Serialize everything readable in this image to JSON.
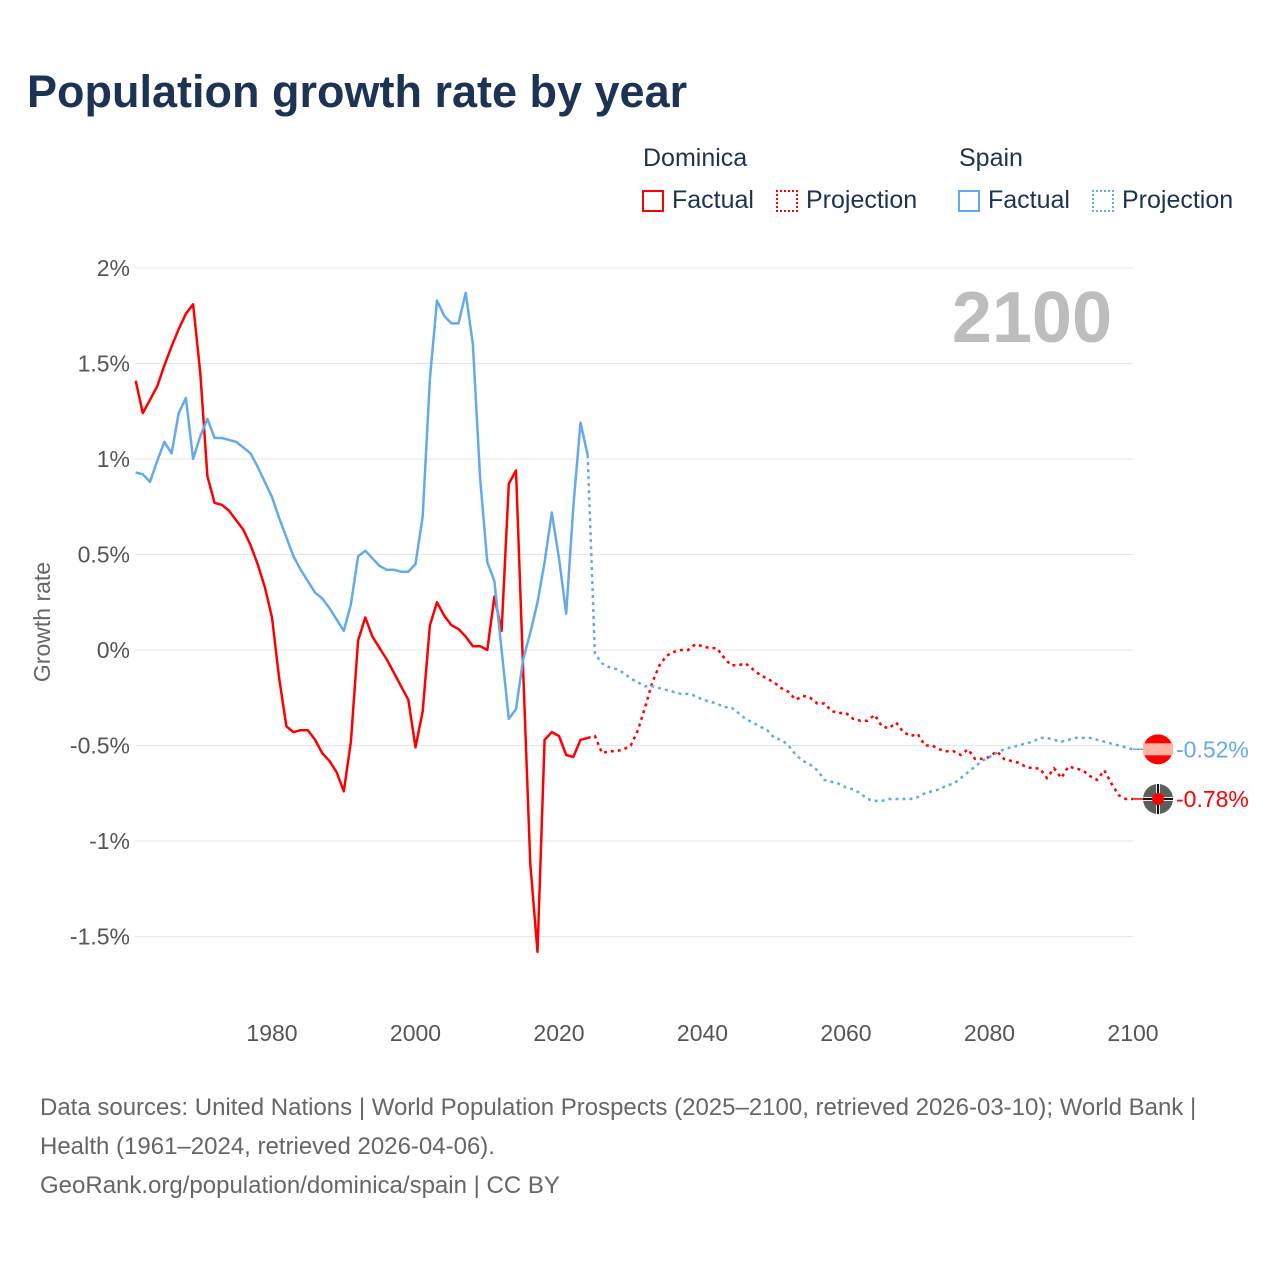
{
  "title": "Population growth rate by year",
  "legend": {
    "groups": [
      {
        "name": "Dominica",
        "color": "#ff0000",
        "factual_label": "Factual",
        "projection_label": "Projection"
      },
      {
        "name": "Spain",
        "color": "#64aaeb",
        "factual_label": "Factual",
        "projection_label": "Projection"
      }
    ]
  },
  "footer": {
    "sources": "Data sources: United Nations | World Population Prospects (2025–2100, retrieved 2026-03-10); World Bank | Health (1961–2024, retrieved 2026-04-06).",
    "credit": "GeoRank.org/population/dominica/spain | CC BY"
  },
  "chart_data": {
    "type": "line",
    "title": "Population growth rate by year",
    "ylabel": "Growth rate",
    "xlabel": "",
    "year_label": "2100",
    "xlim": [
      1961,
      2100
    ],
    "ylim": [
      -1.75,
      2
    ],
    "x_ticks": [
      1980,
      2000,
      2020,
      2040,
      2060,
      2080,
      2100
    ],
    "y_ticks": [
      2,
      1.5,
      1,
      0.5,
      0,
      -0.5,
      -1,
      -1.5
    ],
    "y_tick_labels": [
      "2%",
      "1.5%",
      "1%",
      "0.5%",
      "0%",
      "-0.5%",
      "-1%",
      "-1.5%"
    ],
    "grid": true,
    "series": [
      {
        "name": "Dominica",
        "color": "#ff0000",
        "end_label": "-0.78%",
        "factual_start": 1961,
        "factual": [
          1.41,
          1.24,
          1.31,
          1.38,
          1.49,
          1.59,
          1.68,
          1.76,
          1.81,
          1.45,
          0.91,
          0.77,
          0.76,
          0.73,
          0.68,
          0.63,
          0.55,
          0.45,
          0.33,
          0.17,
          -0.15,
          -0.4,
          -0.43,
          -0.42,
          -0.42,
          -0.47,
          -0.54,
          -0.58,
          -0.64,
          -0.74,
          -0.48,
          0.05,
          0.17,
          0.07,
          0.01,
          -0.05,
          -0.12,
          -0.19,
          -0.26,
          -0.51,
          -0.32,
          0.13,
          0.25,
          0.18,
          0.13,
          0.11,
          0.07,
          0.02,
          0.02,
          0.0,
          0.28,
          0.1,
          0.87,
          0.94,
          -0.1,
          -1.12,
          -1.58,
          -0.47,
          -0.43,
          -0.45,
          -0.55,
          -0.56,
          -0.47,
          -0.46
        ],
        "projection_start": 2025,
        "projection": [
          -0.45,
          -0.54,
          -0.53,
          -0.53,
          -0.52,
          -0.5,
          -0.42,
          -0.3,
          -0.17,
          -0.08,
          -0.03,
          -0.01,
          0.0,
          0.0,
          0.03,
          0.02,
          0.01,
          0.01,
          -0.04,
          -0.08,
          -0.08,
          -0.07,
          -0.1,
          -0.13,
          -0.15,
          -0.17,
          -0.2,
          -0.22,
          -0.26,
          -0.24,
          -0.25,
          -0.28,
          -0.28,
          -0.32,
          -0.33,
          -0.33,
          -0.36,
          -0.37,
          -0.37,
          -0.34,
          -0.4,
          -0.41,
          -0.38,
          -0.43,
          -0.45,
          -0.44,
          -0.5,
          -0.5,
          -0.52,
          -0.53,
          -0.53,
          -0.55,
          -0.52,
          -0.57,
          -0.57,
          -0.56,
          -0.53,
          -0.57,
          -0.58,
          -0.59,
          -0.61,
          -0.62,
          -0.62,
          -0.67,
          -0.62,
          -0.67,
          -0.61,
          -0.62,
          -0.63,
          -0.66,
          -0.68,
          -0.63,
          -0.7,
          -0.76,
          -0.78,
          -0.78
        ]
      },
      {
        "name": "Spain",
        "color": "#64aaeb",
        "end_label": "-0.52%",
        "factual_start": 1961,
        "factual": [
          0.93,
          0.92,
          0.88,
          0.99,
          1.09,
          1.03,
          1.24,
          1.32,
          1.0,
          1.12,
          1.21,
          1.11,
          1.11,
          1.1,
          1.09,
          1.06,
          1.03,
          0.96,
          0.88,
          0.8,
          0.69,
          0.59,
          0.49,
          0.42,
          0.36,
          0.3,
          0.27,
          0.22,
          0.16,
          0.1,
          0.24,
          0.49,
          0.52,
          0.48,
          0.44,
          0.42,
          0.42,
          0.41,
          0.41,
          0.45,
          0.7,
          1.42,
          1.83,
          1.75,
          1.71,
          1.71,
          1.87,
          1.6,
          0.9,
          0.46,
          0.36,
          0.0,
          -0.36,
          -0.31,
          -0.05,
          0.09,
          0.25,
          0.46,
          0.72,
          0.48,
          0.19,
          0.75,
          1.19,
          1.02
        ],
        "projection_start": 2025,
        "projection": [
          -0.02,
          -0.07,
          -0.09,
          -0.1,
          -0.12,
          -0.15,
          -0.17,
          -0.19,
          -0.19,
          -0.2,
          -0.21,
          -0.22,
          -0.23,
          -0.23,
          -0.24,
          -0.26,
          -0.27,
          -0.28,
          -0.3,
          -0.3,
          -0.33,
          -0.36,
          -0.38,
          -0.4,
          -0.42,
          -0.46,
          -0.47,
          -0.5,
          -0.55,
          -0.58,
          -0.6,
          -0.63,
          -0.68,
          -0.69,
          -0.7,
          -0.72,
          -0.73,
          -0.75,
          -0.78,
          -0.79,
          -0.79,
          -0.78,
          -0.78,
          -0.78,
          -0.78,
          -0.77,
          -0.75,
          -0.74,
          -0.73,
          -0.71,
          -0.7,
          -0.67,
          -0.64,
          -0.61,
          -0.58,
          -0.56,
          -0.54,
          -0.52,
          -0.51,
          -0.5,
          -0.49,
          -0.48,
          -0.46,
          -0.46,
          -0.47,
          -0.48,
          -0.47,
          -0.46,
          -0.46,
          -0.46,
          -0.47,
          -0.48,
          -0.49,
          -0.5,
          -0.51,
          -0.52
        ]
      }
    ]
  }
}
